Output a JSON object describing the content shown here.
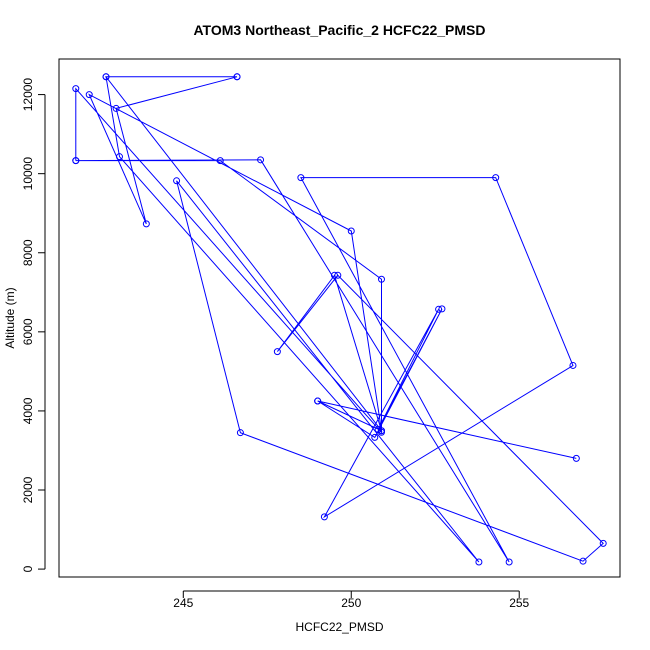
{
  "chart_data": {
    "type": "line",
    "title": "ATOM3 Northeast_Pacific_2 HCFC22_PMSD",
    "xlabel": "HCFC22_PMSD",
    "ylabel": "Altitude (m)",
    "xlim": [
      241.3,
      258.0
    ],
    "ylim": [
      -200,
      12900
    ],
    "x_ticks": [
      245,
      250,
      255
    ],
    "y_ticks": [
      0,
      2000,
      4000,
      6000,
      8000,
      10000,
      12000
    ],
    "x_tick_labels": [
      "245",
      "250",
      "255"
    ],
    "y_tick_labels": [
      "0",
      "2000",
      "4000",
      "6000",
      "8000",
      "10000",
      "12000"
    ],
    "grid": false,
    "legend": "none",
    "colors": {
      "series": "#0000ff",
      "axes": "#000000",
      "background": "#ffffff"
    },
    "series": [
      {
        "points": [
          {
            "x": 246.6,
            "y": 12450
          },
          {
            "x": 242.7,
            "y": 12450
          },
          {
            "x": 250.9,
            "y": 3500
          },
          {
            "x": 250.0,
            "y": 8550
          },
          {
            "x": 242.2,
            "y": 12000
          },
          {
            "x": 243.9,
            "y": 8730
          },
          {
            "x": 243.0,
            "y": 11650
          },
          {
            "x": 246.6,
            "y": 12450
          },
          {
            "x": 242.7,
            "y": 12450
          },
          {
            "x": 243.1,
            "y": 10430
          },
          {
            "x": 253.8,
            "y": 180
          },
          {
            "x": 244.8,
            "y": 9820
          },
          {
            "x": 246.7,
            "y": 3450
          },
          {
            "x": 256.9,
            "y": 200
          },
          {
            "x": 257.5,
            "y": 650
          },
          {
            "x": 249.6,
            "y": 7430
          },
          {
            "x": 247.8,
            "y": 5500
          },
          {
            "x": 249.5,
            "y": 7430
          },
          {
            "x": 250.9,
            "y": 3500
          },
          {
            "x": 249.0,
            "y": 4250
          },
          {
            "x": 256.7,
            "y": 2800
          },
          {
            "x": 249.0,
            "y": 4250
          },
          {
            "x": 250.7,
            "y": 3330
          },
          {
            "x": 252.7,
            "y": 6580
          },
          {
            "x": 250.8,
            "y": 3530
          },
          {
            "x": 252.6,
            "y": 6570
          },
          {
            "x": 249.2,
            "y": 1320
          },
          {
            "x": 256.6,
            "y": 5150
          },
          {
            "x": 254.3,
            "y": 9900
          },
          {
            "x": 248.5,
            "y": 9900
          },
          {
            "x": 254.7,
            "y": 180
          },
          {
            "x": 247.3,
            "y": 10350
          },
          {
            "x": 241.8,
            "y": 10330
          },
          {
            "x": 246.1,
            "y": 10330
          },
          {
            "x": 250.9,
            "y": 7330
          },
          {
            "x": 250.9,
            "y": 3460
          },
          {
            "x": 241.8,
            "y": 12150
          },
          {
            "x": 241.8,
            "y": 10330
          }
        ]
      }
    ]
  }
}
